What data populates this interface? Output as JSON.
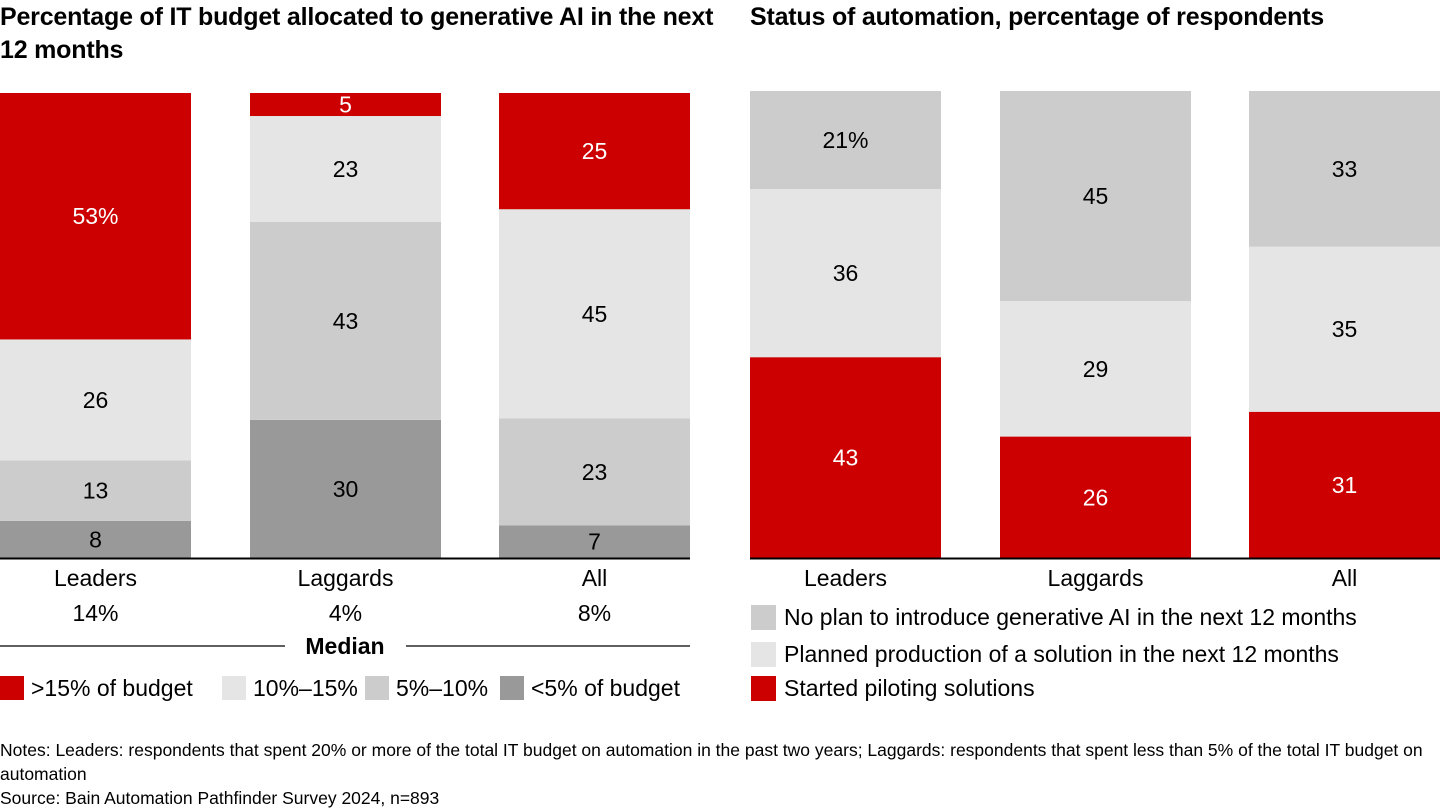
{
  "chart_data": [
    {
      "type": "bar",
      "stacked": true,
      "title": "Percentage of IT budget allocated to generative AI in the next 12 months",
      "categories": [
        "Leaders",
        "Laggards",
        "All"
      ],
      "category_sublabels": [
        "14%",
        "4%",
        "8%"
      ],
      "sublabel_group_title": "Median",
      "series": [
        {
          "name": "<5% of budget",
          "color": "#999999",
          "label_color": "#000000",
          "values": [
            8,
            30,
            7
          ]
        },
        {
          "name": "5%–10%",
          "color": "#cccccc",
          "label_color": "#000000",
          "values": [
            13,
            43,
            23
          ]
        },
        {
          "name": "10%–15%",
          "color": "#e5e5e5",
          "label_color": "#000000",
          "values": [
            26,
            23,
            45
          ]
        },
        {
          "name": ">15% of budget",
          "color": "#cc0000",
          "label_color": "#ffffff",
          "values": [
            53,
            5,
            25
          ]
        }
      ],
      "data_labels": [
        [
          "8",
          "30",
          "7"
        ],
        [
          "13",
          "43",
          "23"
        ],
        [
          "26",
          "23",
          "45"
        ],
        [
          "53%",
          "5",
          "25"
        ]
      ],
      "legend": [
        {
          "label": ">15% of budget",
          "color": "#cc0000"
        },
        {
          "label": "10%–15%",
          "color": "#e5e5e5"
        },
        {
          "label": "5%–10%",
          "color": "#cccccc"
        },
        {
          "label": "<5% of budget",
          "color": "#999999"
        }
      ],
      "legend_position": "bottom",
      "ylim": [
        0,
        100
      ],
      "xlabel": "",
      "ylabel": ""
    },
    {
      "type": "bar",
      "stacked": true,
      "title": "Status of automation, percentage of respondents",
      "categories": [
        "Leaders",
        "Laggards",
        "All"
      ],
      "series": [
        {
          "name": "Started piloting solutions",
          "color": "#cc0000",
          "label_color": "#ffffff",
          "values": [
            43,
            26,
            31
          ]
        },
        {
          "name": "Planned production of a solution in the next 12 months",
          "color": "#e5e5e5",
          "label_color": "#000000",
          "values": [
            36,
            29,
            35
          ]
        },
        {
          "name": "No plan to introduce generative AI in the next 12 months",
          "color": "#cccccc",
          "label_color": "#000000",
          "values": [
            21,
            45,
            33
          ]
        }
      ],
      "data_labels": [
        [
          "43",
          "26",
          "31"
        ],
        [
          "36",
          "29",
          "35"
        ],
        [
          "21%",
          "45",
          "33"
        ]
      ],
      "legend": [
        {
          "label": "No plan to introduce generative AI in the next 12 months",
          "color": "#cccccc"
        },
        {
          "label": "Planned production of a solution in the next 12 months",
          "color": "#e5e5e5"
        },
        {
          "label": "Started piloting solutions",
          "color": "#cc0000"
        }
      ],
      "legend_position": "bottom",
      "ylim": [
        0,
        100
      ],
      "xlabel": "",
      "ylabel": ""
    }
  ],
  "footer": {
    "notes": "Notes: Leaders: respondents that spent 20% or more of the total IT budget on automation in the past two years; Laggards: respondents that spent less than 5% of the total IT budget on automation",
    "source": "Source: Bain Automation Pathfinder Survey 2024, n=893"
  }
}
